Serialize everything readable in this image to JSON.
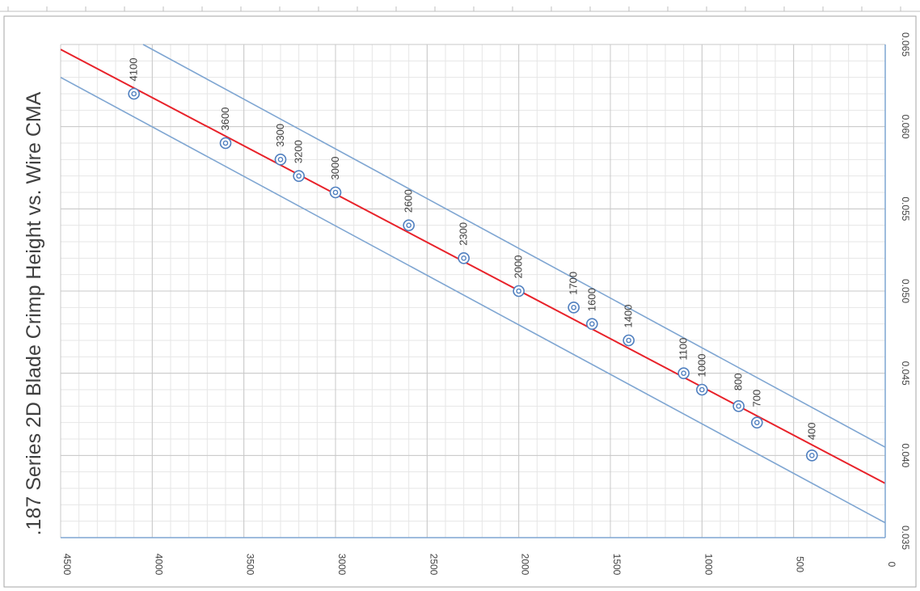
{
  "chart_data": {
    "type": "scatter",
    "title": ".187 Series 2D Blade Crimp Height vs. Wire CMA",
    "xlabel": "",
    "ylabel": "",
    "xlim": [
      0,
      4500
    ],
    "ylim": [
      0.035,
      0.065
    ],
    "x_ticks": [
      "4500",
      "4000",
      "3500",
      "3000",
      "2500",
      "2000",
      "1500",
      "1000",
      "500",
      "0"
    ],
    "y_ticks": [
      "0.035",
      "0.040",
      "0.045",
      "0.050",
      "0.055",
      "0.060",
      "0.065"
    ],
    "x_minor_step": 100,
    "y_minor_step": 0.001,
    "grid": true,
    "orientation": "rotated-90-clockwise",
    "points": [
      {
        "x": 4100,
        "y": 0.062,
        "label": "4100"
      },
      {
        "x": 3600,
        "y": 0.059,
        "label": "3600"
      },
      {
        "x": 3300,
        "y": 0.058,
        "label": "3300"
      },
      {
        "x": 3200,
        "y": 0.057,
        "label": "3200"
      },
      {
        "x": 3000,
        "y": 0.056,
        "label": "3000"
      },
      {
        "x": 2600,
        "y": 0.054,
        "label": "2600"
      },
      {
        "x": 2300,
        "y": 0.052,
        "label": "2300"
      },
      {
        "x": 2000,
        "y": 0.05,
        "label": "2000"
      },
      {
        "x": 1700,
        "y": 0.049,
        "label": "1700"
      },
      {
        "x": 1600,
        "y": 0.048,
        "label": "1600"
      },
      {
        "x": 1400,
        "y": 0.047,
        "label": "1400"
      },
      {
        "x": 1100,
        "y": 0.045,
        "label": "1100"
      },
      {
        "x": 1000,
        "y": 0.044,
        "label": "1000"
      },
      {
        "x": 800,
        "y": 0.043,
        "label": "800"
      },
      {
        "x": 700,
        "y": 0.042,
        "label": "700"
      },
      {
        "x": 400,
        "y": 0.04,
        "label": "400"
      }
    ],
    "lines": [
      {
        "role": "upper-limit",
        "color": "#7fa6d2",
        "from": [
          0,
          0.0405
        ],
        "to": [
          4050,
          0.065
        ]
      },
      {
        "role": "trend",
        "color": "#e8222a",
        "from": [
          0,
          0.0383
        ],
        "to": [
          4500,
          0.0647
        ]
      },
      {
        "role": "lower-limit",
        "color": "#7fa6d2",
        "from": [
          0,
          0.0359
        ],
        "to": [
          4500,
          0.063
        ]
      }
    ],
    "colors": {
      "marker": "#4f7fbf",
      "trend": "#e8222a",
      "limits": "#7fa6d2",
      "grid_major": "#c8c8c8",
      "grid_minor": "#e6e6e6",
      "axis": "#7fa6d2"
    }
  }
}
